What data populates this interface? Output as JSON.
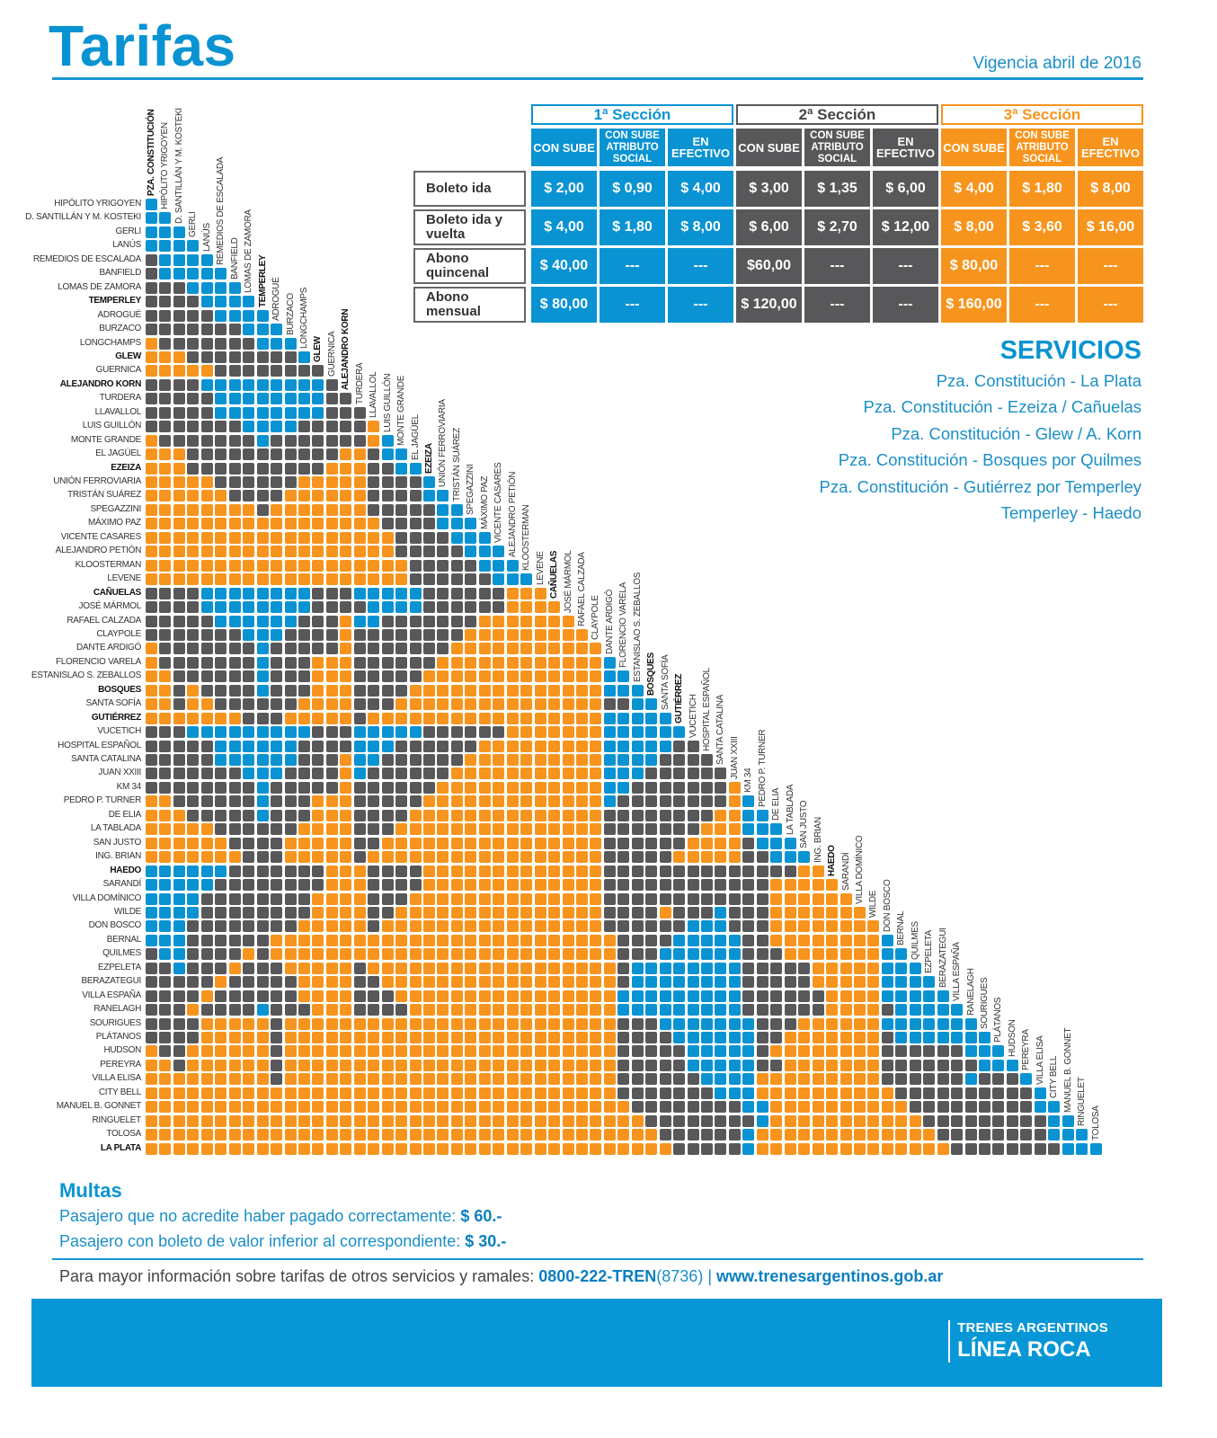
{
  "header": {
    "title": "Tarifas",
    "vigencia": "Vigencia abril de 2016"
  },
  "colors": {
    "seccion_1": "#0a93d2",
    "seccion_2": "#58585a",
    "seccion_3": "#f7941d",
    "brand_blue": "#0897d6"
  },
  "fare_table": {
    "sections": [
      {
        "name": "1ª Sección",
        "color_key": "seccion_1"
      },
      {
        "name": "2ª Sección",
        "color_key": "seccion_2"
      },
      {
        "name": "3ª Sección",
        "color_key": "seccion_3"
      }
    ],
    "sub_headers": [
      "CON SUBE",
      "CON SUBE ATRIBUTO SOCIAL",
      "EN EFECTIVO"
    ],
    "rows": [
      {
        "label": "Boleto ida",
        "values": [
          "$ 2,00",
          "$ 0,90",
          "$ 4,00",
          "$ 3,00",
          "$ 1,35",
          "$ 6,00",
          "$ 4,00",
          "$ 1,80",
          "$ 8,00"
        ]
      },
      {
        "label": "Boleto ida y vuelta",
        "values": [
          "$ 4,00",
          "$ 1,80",
          "$ 8,00",
          "$ 6,00",
          "$ 2,70",
          "$ 12,00",
          "$ 8,00",
          "$ 3,60",
          "$ 16,00"
        ]
      },
      {
        "label": "Abono quincenal",
        "values": [
          "$ 40,00",
          "---",
          "---",
          "$60,00",
          "---",
          "---",
          "$ 80,00",
          "---",
          "---"
        ]
      },
      {
        "label": "Abono mensual",
        "values": [
          "$ 80,00",
          "---",
          "---",
          "$ 120,00",
          "---",
          "---",
          "$ 160,00",
          "---",
          "---"
        ]
      }
    ]
  },
  "servicios": {
    "title": "SERVICIOS",
    "items": [
      "Pza. Constitución - La Plata",
      "Pza. Constitución - Ezeiza / Cañuelas",
      "Pza. Constitución - Glew / A. Korn",
      "Pza. Constitución - Bosques por Quilmes",
      "Pza. Constitución - Gutiérrez por Temperley",
      "Temperley - Haedo"
    ]
  },
  "matrix": {
    "legend": {
      "B": "1ª Sección",
      "G": "2ª Sección",
      "O": "3ª Sección"
    },
    "stations": [
      {
        "name": "PZA. CONSTITUCIÓN",
        "bold": true
      },
      {
        "name": "HIPÓLITO YRIGOYEN"
      },
      {
        "name": "D. SANTILLÁN Y M. KOSTEKI"
      },
      {
        "name": "GERLI"
      },
      {
        "name": "LANÚS"
      },
      {
        "name": "REMEDIOS DE ESCALADA"
      },
      {
        "name": "BANFIELD"
      },
      {
        "name": "LOMAS DE ZAMORA"
      },
      {
        "name": "TEMPERLEY",
        "bold": true
      },
      {
        "name": "ADROGUÉ"
      },
      {
        "name": "BURZACO"
      },
      {
        "name": "LONGCHAMPS"
      },
      {
        "name": "GLEW",
        "bold": true
      },
      {
        "name": "GUERNICA"
      },
      {
        "name": "ALEJANDRO KORN",
        "bold": true
      },
      {
        "name": "TURDERA"
      },
      {
        "name": "LLAVALLOL"
      },
      {
        "name": "LUIS GUILLÓN"
      },
      {
        "name": "MONTE GRANDE"
      },
      {
        "name": "EL JAGÜEL"
      },
      {
        "name": "EZEIZA",
        "bold": true
      },
      {
        "name": "UNIÓN FERROVIARIA"
      },
      {
        "name": "TRISTÁN SUÁREZ"
      },
      {
        "name": "SPEGAZZINI"
      },
      {
        "name": "MÁXIMO PAZ"
      },
      {
        "name": "VICENTE CASARES"
      },
      {
        "name": "ALEJANDRO PETIÓN"
      },
      {
        "name": "KLOOSTERMAN"
      },
      {
        "name": "LEVENE"
      },
      {
        "name": "CAÑUELAS",
        "bold": true
      },
      {
        "name": "JOSÉ MÁRMOL"
      },
      {
        "name": "RAFAEL CALZADA"
      },
      {
        "name": "CLAYPOLE"
      },
      {
        "name": "DANTE ARDIGÓ"
      },
      {
        "name": "FLORENCIO VARELA"
      },
      {
        "name": "ESTANISLAO S. ZEBALLOS"
      },
      {
        "name": "BOSQUES",
        "bold": true
      },
      {
        "name": "SANTA SOFÍA"
      },
      {
        "name": "GUTIÉRREZ",
        "bold": true
      },
      {
        "name": "VUCETICH"
      },
      {
        "name": "HOSPITAL ESPAÑOL"
      },
      {
        "name": "SANTA CATALINA"
      },
      {
        "name": "JUAN XXIII"
      },
      {
        "name": "KM 34"
      },
      {
        "name": "PEDRO P. TURNER"
      },
      {
        "name": "DE ELIA"
      },
      {
        "name": "LA TABLADA"
      },
      {
        "name": "SAN JUSTO"
      },
      {
        "name": "ING. BRIAN"
      },
      {
        "name": "HAEDO",
        "bold": true
      },
      {
        "name": "SARANDÍ"
      },
      {
        "name": "VILLA DOMÍNICO"
      },
      {
        "name": "WILDE"
      },
      {
        "name": "DON BOSCO"
      },
      {
        "name": "BERNAL"
      },
      {
        "name": "QUILMES"
      },
      {
        "name": "EZPELETA"
      },
      {
        "name": "BERAZATEGUI"
      },
      {
        "name": "VILLA ESPAÑA"
      },
      {
        "name": "RANELAGH"
      },
      {
        "name": "SOURIGUES"
      },
      {
        "name": "PLÁTANOS"
      },
      {
        "name": "HUDSON"
      },
      {
        "name": "PEREYRA"
      },
      {
        "name": "VILLA ELISA"
      },
      {
        "name": "CITY BELL"
      },
      {
        "name": "MANUEL B. GONNET"
      },
      {
        "name": "RINGUELET"
      },
      {
        "name": "TOLOSA"
      },
      {
        "name": "LA PLATA",
        "bold": true
      }
    ],
    "rows": [
      "B",
      "BB",
      "BBB",
      "BBBB",
      "GBBBBB",
      "GBBBBBB",
      "GGGBBBBB",
      "GGGGBBBBB",
      "GGGGGBBBBB",
      "GGGGGGGBBBBB",
      "OGGGGGGGBBBBB",
      "OOOGGGGGGGGBBBB",
      "OOOOOGGGGGGGGBBB",
      "GGGGBBBBBBBBBGGGG",
      "GGGGGBBBBBBBBGGGGB",
      "GGGGGBBBBBBBBGGGOBB",
      "GGGGGGGBBBBGGGGGOBBB",
      "OGGGGGGGBGGGGGGGOBBBB",
      "OOOGGGGGGGGGGGOOGBBBBB",
      "OOOGGGGGGGGGGOOOGGBBBBB",
      "OOOOOGGGGGGOOOOOGGGGBBBBB",
      "OOOOOOGGGGOOOOOOGGGGBBBBBB",
      "OOOOOOOOGOOOOOOOGGGGGBBBBBB",
      "OOOOOOOOOOOOOOOOOGGGGBBBBBBB",
      "OOOOOOOOOOOOOOOOOOGGGGBBBBBBBB",
      "OOOOOOOOOOOOOOOOOOGGGGGBBBBBBBB",
      "OOOOOOOOOOOOOOOOOOOGGGGGBBBBBBBBB",
      "OOOOOOOOOOOOOOOOOOOGGGGGGBBBBBBBBB",
      "GGGGBBBBBBBBGGGBBBBBGGGGGGOOOOOOOO",
      "GGGGBBBBBBBBGGGGBBBBGGGGGGOOOOOOOOB",
      "GGGGGBBBBBBGGGOBBGGGGGGGOOOOOOOOOBB",
      "GGGGGGGBBBGGGGOGGGGGGGGOOOOOOOOOOBBB",
      "OGGGGGGGBGGGGGOGGGGGGGOOOOOOOOOOOBBBB",
      "OGGGGGGGBGGGOOOGGGGGGOOOOOOOOOOOOBBBBB",
      "OOGGGGGGBGGGOOOGGGGGOOOOOOOOOOOOOBBBBBB",
      "OOGOGGGGBGGGOOOGGGGOOOOOOOOOOOOOOBBBBBBB",
      "OOGOOGGGGGGOOOOGGGOOOOOOOOOOOOOOOGGBBBBBB",
      "OOOOOOOGGGOOOOOGOOOOOOOOOOOOOOOOOBBBBBBBBB",
      "GGGBBBBBBBBBGGGBBBBBGGGGGGOOOOOOOBBBBBBGGGG",
      "GGGGGBBBBBBGGGGBBBGGGGGGOOOOOOOOOBBBBBGGGGGB",
      "GGGGGBBBBBBGGGOBBGGGGGGOOOOOOOOOOBBBBGGGGGGBB",
      "GGGGGGGBBBGGGGOBGGGGGGOOOOOOOOOOOBBBGGGGGGGBBB",
      "GGGGGGGGBGGGGGOGGGGGGOOOOOOOOOOOOBBGGGGGGGOBBBB",
      "OOGGGGGGBGGGOOOGGGGGOOOOOOOOOOOOOBGGGGGGGGOBBBBB",
      "OOOGGGGGBGGGOOOGGGGOOOOOOOOOOOOOOGGGGGGGGOOBBBBBB",
      "OOOOOGGGGGGOOOOGGGOOOOOOOOOOOOOOOGGGGGGGOOOBBBBBBB",
      "OOOOOOGGGGOOOOOGGOOOOOOOOOOOOOOOOGGGGGGOOOOGBBBBBBB",
      "OOOOOOOGGGOOOOOGOOOOOOOOOOOOOOOOOGGGGGOOOOOGGBBBBBBB",
      "BBBBBBGGGGGGGOOOGGGGOOOOOOOOOOOOOGGGGGGGGGGGGGGOOOOOO",
      "BBBBBGGGGGGGGOOOGGGGOOOOOOOOOOOOOGGGGGGGGGGGGOOOOOOOOB",
      "BBBBGGGGGGGGOOOOGGGOOOOOOOOOOOOOOGGGGGGGGGGGGOOOOOOOOBB",
      "BBBBGGGGGGGGOOOOGGOOOOOOOOOOOOOOOGGGGOGGGBGGGOOOOOOOOBBB",
      "BBBGGGGGGGGOOOOOGOOOOOOOOOOOOOOOOGGGGGGBBBGGGOOOOOOOOBBBB",
      "BBBGGGGGGOOOOOOOOOOOOOOOOOOOOOOOOOGGGGBBBBBGGOOOOOOOOBBBBB",
      "GBBGGGGOGOOOOOOOOOOOOOOOOOOOOOOOOOGGGBBBBBBGGGOOOOOOOBBBBBB",
      "GGBGGGOGGGOOOOOGOOOOOOOOOOOOOOOOOOGBBBBBBBBGGGGGOOOOOBBBBBBB",
      "GGGGGOGGGGGOOOOGGOOOOOOOOOOOOOOOOOGBBBBBBBBGGGGGOOOOOBBBBBBBB",
      "GGGGOGGGGGGOOOOGGGOOOOOOOOOOOOOOOOBBBBBBBBBGGGGGGOOOOBBBBBBBBB",
      "GGGOGGGGBGGGOOOGGGGOOOOOOOOOOOOOOOBBBBBBBBBGGGGGGOOOOGBBBBBBBBB",
      "GGGGOOOOOGOOOOOOOOOOOOOOOOOOOOOOOOGGGBBBBBBBGGGOOOOOOBBBBBBBBBBB",
      "GGGGOOOOOGOOOOOOOOOOOOOOOOOOOOOOOOGGGGBBBBBBGGOOOOOOOGBBBBBBBBBBB",
      "OGGOOOOOOGOOOOOOOOOOOOOOOOOOOOOOOOGGGGGBBBBBGOOOOOOOOGGGGGGBBBBBBB",
      "OOGOOOOOOGOOOOOOOOOOOOOOOOOOOOOOOOGGGGGBBBBBGGOOOOOOOGGGGGGGBBBBBBB",
      "OOOOOOOOOGOOOOOOOOOOOOOOOOOOOOOOOOGGGGGGBBBBOOOOOOOOOGGGGGGBGGGBBBBB",
      "OOOOOOOOOOOOOOOOOOOOOOOOOOOOOOOOOOGGGGGGGBBBOOOOOOOOOOGGGGGGGGGGBBBBB",
      "OOOOOOOOOOOOOOOOOOOOOOOOOOOOOOOOOOOGGGGGGGGBBOOOOOOOOOOGGGGGGGGGBBBBBB",
      "OOOOOOOOOOOOOOOOOOOOOOOOOOOOOOOOOOOOGGGGGGGGBOOOOOOOOOOOGGGGGGGGGBBBBBB",
      "OOOOOOOOOOOOOOOOOOOOOOOOOOOOOOOOOOOOOGGGGGGBOOOOOOOOOOOOOGGGGGGGGBBBBBBB",
      "OOOOOOOOOOOOOOOOOOOOOOOOOOOOOOOOOOOOOOGGGGGBOOOOOOOOOOOOOOGGGGGGGGBBBBBBB"
    ]
  },
  "multas": {
    "title": "Multas",
    "items": [
      {
        "text": "Pasajero que no acredite haber pagado correctamente:",
        "amount": "$ 60.-"
      },
      {
        "text": "Pasajero con boleto de valor inferior al correspondiente:",
        "amount": "$ 30.-"
      }
    ]
  },
  "info": {
    "text": "Para mayor información sobre tarifas de otros servicios y ramales:",
    "phone": "0800-222-TREN",
    "phone_digits": "(8736)",
    "separator": "|",
    "website": "www.trenesargentinos.gob.ar"
  },
  "brand": {
    "line1": "TRENES ARGENTINOS",
    "line2": "LÍNEA ROCA"
  }
}
